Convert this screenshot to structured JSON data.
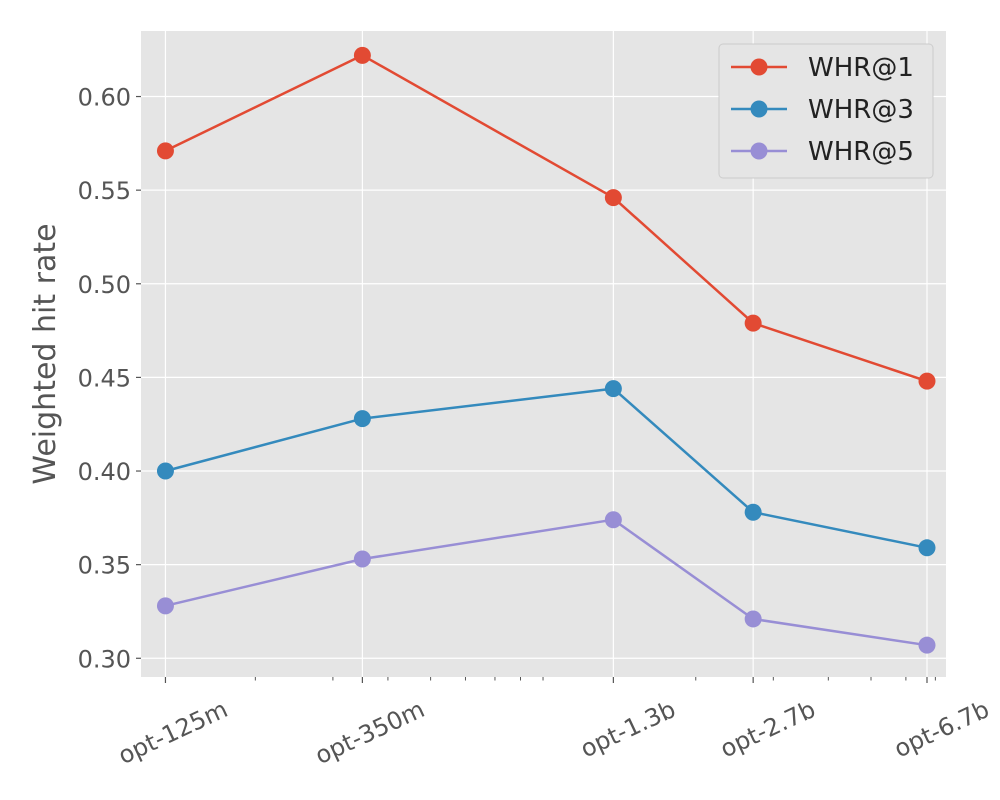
{
  "chart_data": {
    "type": "line",
    "title": "",
    "xlabel": "",
    "ylabel": "Weighted hit rate",
    "x_scale": "log",
    "categories": [
      "opt-125m",
      "opt-350m",
      "opt-1.3b",
      "opt-2.7b",
      "opt-6.7b"
    ],
    "x": [
      125,
      350,
      1300,
      2700,
      6700
    ],
    "ylim": [
      0.29,
      0.635
    ],
    "yticks": [
      "0.30",
      "0.35",
      "0.40",
      "0.45",
      "0.50",
      "0.55",
      "0.60"
    ],
    "grid": true,
    "legend_position": "top-right",
    "series": [
      {
        "name": "WHR@1",
        "color": "#E24A33",
        "values": [
          0.571,
          0.622,
          0.546,
          0.479,
          0.448
        ]
      },
      {
        "name": "WHR@3",
        "color": "#348ABD",
        "values": [
          0.4,
          0.428,
          0.444,
          0.378,
          0.359
        ]
      },
      {
        "name": "WHR@5",
        "color": "#988ED5",
        "values": [
          0.328,
          0.353,
          0.374,
          0.321,
          0.307
        ]
      }
    ]
  }
}
